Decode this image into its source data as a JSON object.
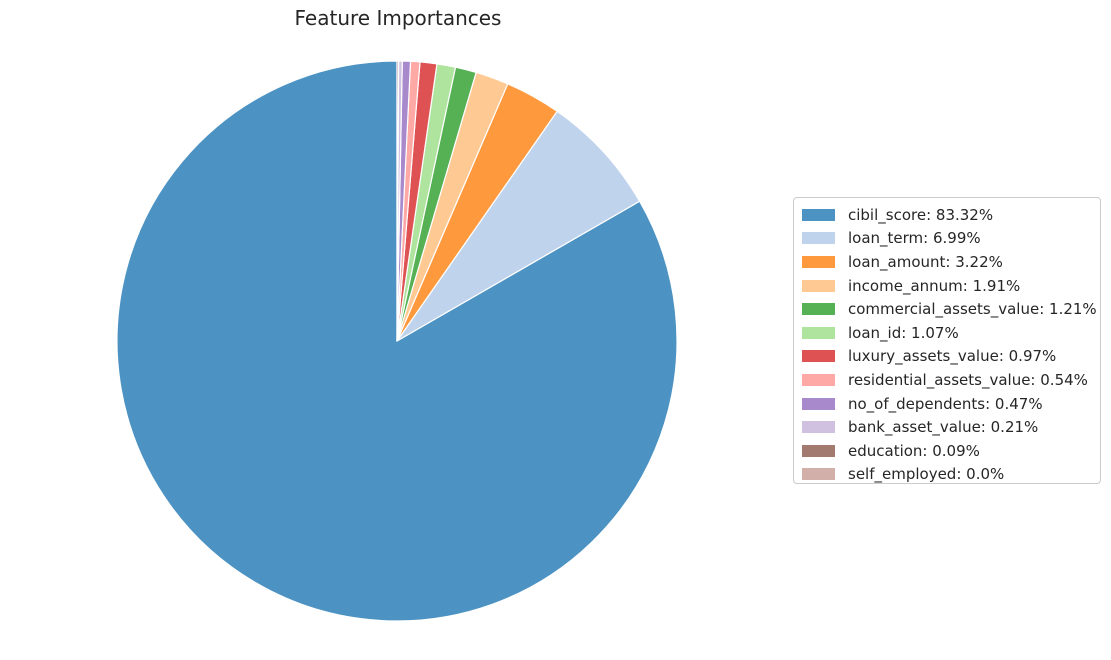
{
  "chart_data": {
    "type": "pie",
    "title": "Feature Importances",
    "categories": [
      "cibil_score",
      "loan_term",
      "loan_amount",
      "income_annum",
      "commercial_assets_value",
      "loan_id",
      "luxury_assets_value",
      "residential_assets_value",
      "no_of_dependents",
      "bank_asset_value",
      "education",
      "self_employed"
    ],
    "values": [
      83.32,
      6.99,
      3.22,
      1.91,
      1.21,
      1.07,
      0.97,
      0.54,
      0.47,
      0.21,
      0.09,
      0.0
    ],
    "colors": [
      "#4c92c3",
      "#bfd3ec",
      "#ff993e",
      "#ffc994",
      "#55b153",
      "#afe49e",
      "#de5253",
      "#ffa9a6",
      "#a889cc",
      "#d1c1e0",
      "#a27a6f",
      "#d2afa8"
    ],
    "legend": {
      "position": "right",
      "labels": [
        "cibil_score: 83.32%",
        "loan_term: 6.99%",
        "loan_amount: 3.22%",
        "income_annum: 1.91%",
        "commercial_assets_value: 1.21%",
        "loan_id: 1.07%",
        "luxury_assets_value: 0.97%",
        "residential_assets_value: 0.54%",
        "no_of_dependents: 0.47%",
        "bank_asset_value: 0.21%",
        "education: 0.09%",
        "self_employed: 0.0%"
      ]
    },
    "start_angle": "top",
    "direction": "counterclockwise"
  }
}
